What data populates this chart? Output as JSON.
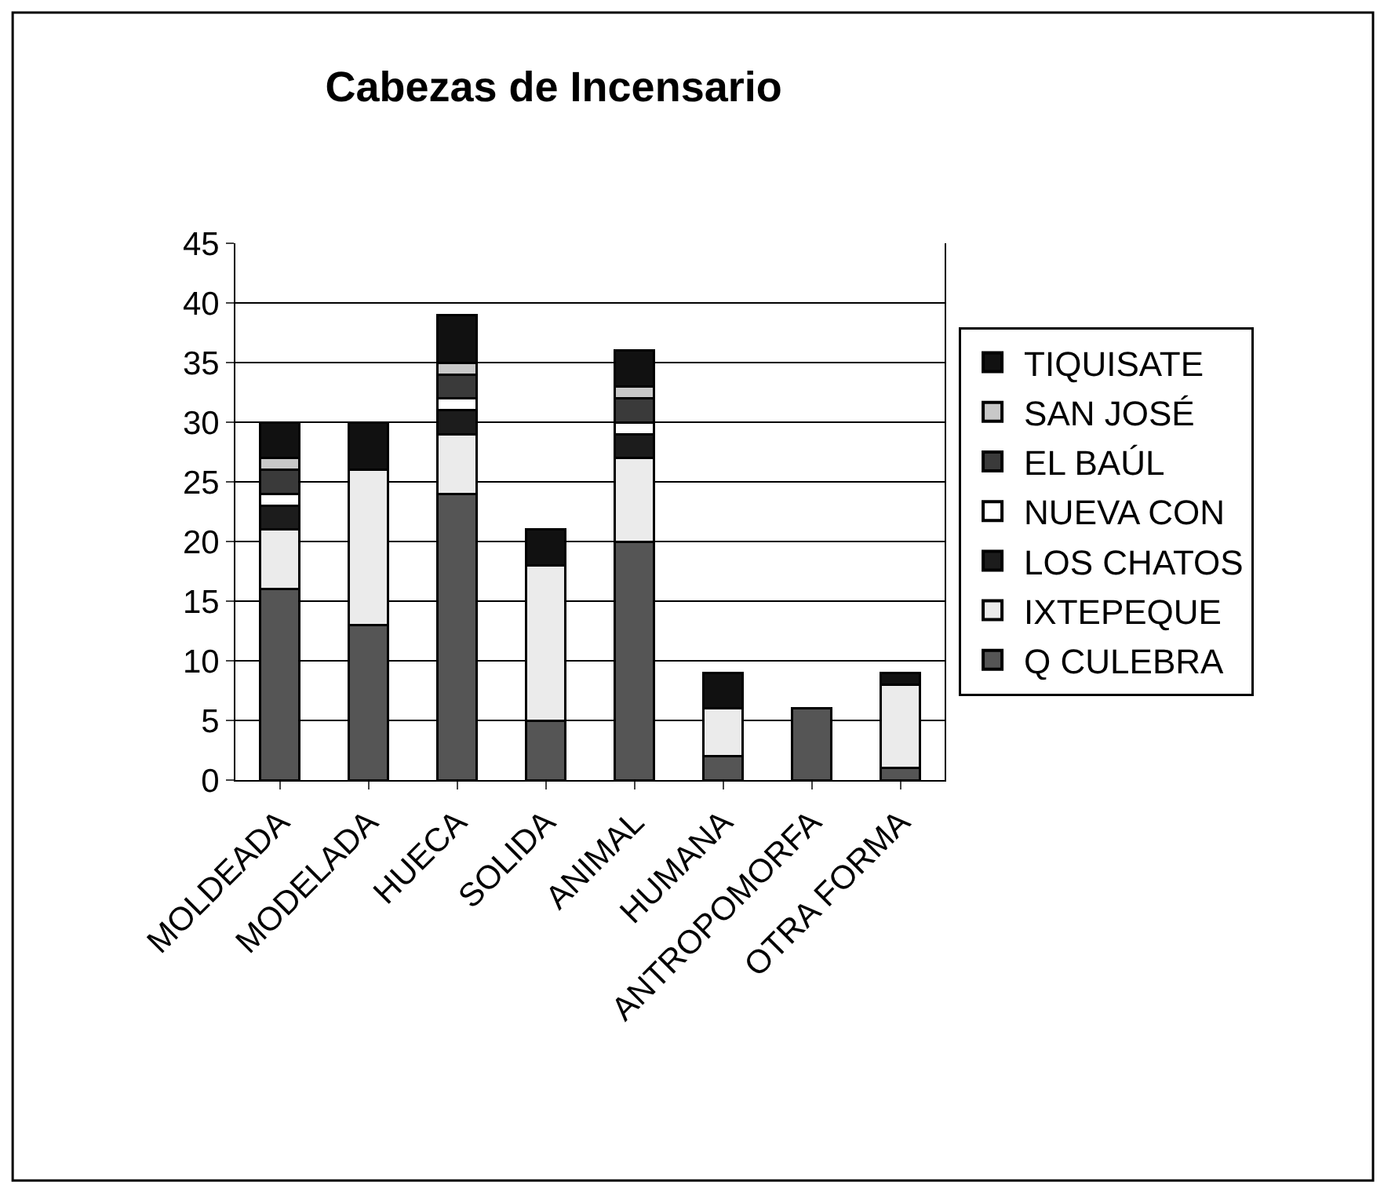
{
  "chart_data": {
    "type": "bar",
    "title": "Cabezas de Incensario",
    "stacked": true,
    "legend": "right",
    "grid": "y",
    "categories": [
      "MOLDEADA",
      "MODELADA",
      "HUECA",
      "SOLIDA",
      "ANIMAL",
      "HUMANA",
      "ANTROPOMORFA",
      "OTRA FORMA"
    ],
    "ylim": [
      0,
      45
    ],
    "yticks": [
      0,
      5,
      10,
      15,
      20,
      25,
      30,
      35,
      40,
      45
    ],
    "series": [
      {
        "name": "Q CULEBRA",
        "color": "#555555",
        "values": [
          16,
          13,
          24,
          5,
          20,
          2,
          6,
          1
        ]
      },
      {
        "name": "IXTEPEQUE",
        "color": "#ebebeb",
        "values": [
          5,
          13,
          5,
          13,
          7,
          4,
          null,
          7
        ]
      },
      {
        "name": "LOS CHATOS",
        "color": "#1c1c1c",
        "values": [
          2,
          null,
          2,
          null,
          2,
          null,
          null,
          null
        ]
      },
      {
        "name": "NUEVA CON",
        "color": "#ffffff",
        "values": [
          1,
          null,
          1,
          null,
          1,
          null,
          null,
          null
        ]
      },
      {
        "name": "EL BAÚL",
        "color": "#3a3a3a",
        "values": [
          2,
          null,
          2,
          null,
          2,
          null,
          null,
          null
        ]
      },
      {
        "name": "SAN JOSÉ",
        "color": "#c8c8c8",
        "values": [
          1,
          null,
          1,
          null,
          1,
          null,
          null,
          null
        ]
      },
      {
        "name": "TIQUISATE",
        "color": "#111111",
        "values": [
          3,
          4,
          4,
          3,
          3,
          3,
          null,
          1
        ]
      }
    ]
  }
}
